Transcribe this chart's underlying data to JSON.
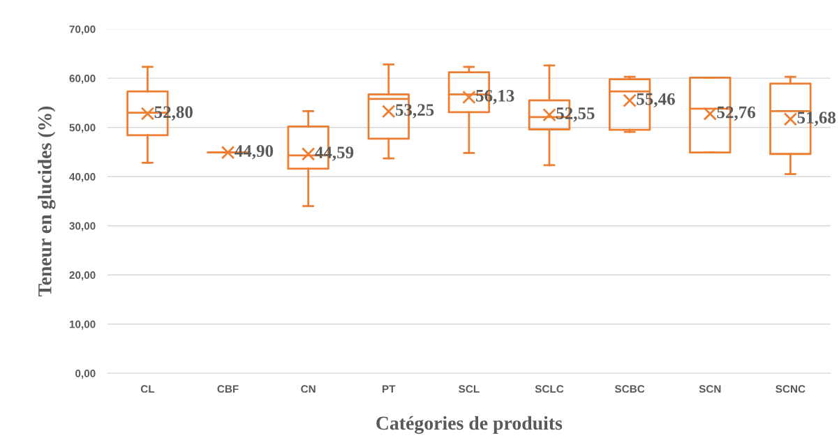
{
  "chart_data": {
    "type": "box",
    "xlabel": "Catégories de produits",
    "ylabel": "Teneur en glucides (%)",
    "categories": [
      "CL",
      "CBF",
      "CN",
      "PT",
      "SCL",
      "SCLC",
      "SCBC",
      "SCN",
      "SCNC"
    ],
    "color": "#ed7d31",
    "boxes": [
      {
        "low": 42.8,
        "q1": 48.4,
        "median": 53.0,
        "q3": 57.3,
        "high": 62.3,
        "mean": 52.8
      },
      {
        "low": 44.9,
        "q1": 44.9,
        "median": 44.9,
        "q3": 44.9,
        "high": 44.9,
        "mean": 44.9
      },
      {
        "low": 34.0,
        "q1": 41.6,
        "median": 44.3,
        "q3": 50.2,
        "high": 53.3,
        "mean": 44.59
      },
      {
        "low": 43.7,
        "q1": 47.7,
        "median": 55.8,
        "q3": 56.7,
        "high": 62.8,
        "mean": 53.25
      },
      {
        "low": 44.8,
        "q1": 53.1,
        "median": 56.7,
        "q3": 61.2,
        "high": 62.3,
        "mean": 56.13
      },
      {
        "low": 42.3,
        "q1": 49.6,
        "median": 52.1,
        "q3": 55.5,
        "high": 62.6,
        "mean": 52.55
      },
      {
        "low": 49.1,
        "q1": 49.5,
        "median": 57.3,
        "q3": 59.8,
        "high": 60.3,
        "mean": 55.46
      },
      {
        "low": 44.9,
        "q1": 44.9,
        "median": 53.8,
        "q3": 60.1,
        "high": 60.1,
        "mean": 52.76
      },
      {
        "low": 40.5,
        "q1": 44.6,
        "median": 53.3,
        "q3": 58.9,
        "high": 60.3,
        "mean": 51.68
      }
    ],
    "value_labels": [
      "52,80",
      "44,90",
      "44,59",
      "53,25",
      "56,13",
      "52,55",
      "55,46",
      "52,76",
      "51,68"
    ],
    "ylim": [
      0,
      70
    ],
    "yticks": [
      {
        "value": 0,
        "label": "0,00"
      },
      {
        "value": 10,
        "label": "10,00"
      },
      {
        "value": 20,
        "label": "20,00"
      },
      {
        "value": 30,
        "label": "30,00"
      },
      {
        "value": 40,
        "label": "40,00"
      },
      {
        "value": 50,
        "label": "50,00"
      },
      {
        "value": 60,
        "label": "60,00"
      },
      {
        "value": 70,
        "label": "70,00"
      }
    ],
    "grid": "y",
    "marker": "cross"
  }
}
